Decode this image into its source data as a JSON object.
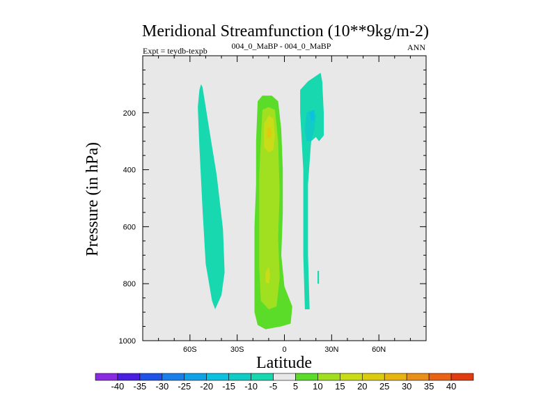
{
  "chart_data": {
    "type": "contour",
    "title": "Meridional Streamfunction (10**9kg/m-2)",
    "subtitle_left": "Expt = teydb-texpb",
    "subtitle_center": "004_0_MaBP - 004_0_MaBP",
    "subtitle_right": "ANN",
    "xlabel": "Latitude",
    "ylabel": "Pressure (in hPa)",
    "xlim": [
      -90,
      90
    ],
    "ylim": [
      1000,
      0
    ],
    "xticks": [
      -60,
      -30,
      0,
      30,
      60
    ],
    "xtick_labels": [
      "60S",
      "30S",
      "0",
      "30N",
      "60N"
    ],
    "yticks": [
      200,
      400,
      600,
      800,
      1000
    ],
    "ytick_labels": [
      "200",
      "400",
      "600",
      "800",
      "1000"
    ],
    "contour_levels": [
      -40,
      -35,
      -30,
      -25,
      -20,
      -15,
      -10,
      -5,
      5,
      10,
      15,
      20,
      25,
      30,
      35,
      40
    ],
    "colorbar_labels": [
      "-40",
      "-35",
      "-30",
      "-25",
      "-20",
      "-15",
      "-10",
      "-5",
      "5",
      "10",
      "15",
      "20",
      "25",
      "30",
      "35",
      "40"
    ],
    "colorbar_colors": [
      "#8a2be2",
      "#4a1ee0",
      "#1f52e6",
      "#1a7fe8",
      "#10a2e6",
      "#0cc0e0",
      "#10ccc4",
      "#18d8b0",
      "#e8e8e8",
      "#5adc28",
      "#a0e020",
      "#c8dc18",
      "#dccc10",
      "#e8b410",
      "#e89018",
      "#e86414",
      "#e03c10"
    ],
    "background_color": "#e8e8e8",
    "regions": [
      {
        "name": "southern-negative-cell",
        "level": -5,
        "color": "#18d8b0",
        "points": [
          [
            -54,
            120
          ],
          [
            -53,
            100
          ],
          [
            -52,
            110
          ],
          [
            -48,
            250
          ],
          [
            -43,
            420
          ],
          [
            -39,
            610
          ],
          [
            -38,
            760
          ],
          [
            -40,
            840
          ],
          [
            -44,
            890
          ],
          [
            -46,
            860
          ],
          [
            -50,
            730
          ],
          [
            -52,
            540
          ],
          [
            -54,
            320
          ],
          [
            -55,
            180
          ]
        ]
      },
      {
        "name": "tropical-positive-cell",
        "level": 5,
        "color": "#5adc28",
        "points": [
          [
            -18,
            300
          ],
          [
            -17,
            160
          ],
          [
            -14,
            140
          ],
          [
            -8,
            140
          ],
          [
            -4,
            160
          ],
          [
            -2,
            260
          ],
          [
            -1,
            400
          ],
          [
            -1,
            550
          ],
          [
            -2,
            700
          ],
          [
            0,
            810
          ],
          [
            5,
            880
          ],
          [
            4,
            940
          ],
          [
            -2,
            950
          ],
          [
            -12,
            960
          ],
          [
            -17,
            945
          ],
          [
            -19,
            900
          ],
          [
            -19,
            800
          ],
          [
            -19,
            600
          ],
          [
            -18,
            450
          ]
        ]
      },
      {
        "name": "tropical-10-core",
        "level": 10,
        "color": "#a0e020",
        "points": [
          [
            -15,
            300
          ],
          [
            -14,
            190
          ],
          [
            -10,
            180
          ],
          [
            -6,
            190
          ],
          [
            -4,
            300
          ],
          [
            -3,
            480
          ],
          [
            -4,
            640
          ],
          [
            -3,
            780
          ],
          [
            -5,
            880
          ],
          [
            -10,
            890
          ],
          [
            -15,
            860
          ],
          [
            -16,
            740
          ],
          [
            -16,
            560
          ],
          [
            -16,
            420
          ]
        ]
      },
      {
        "name": "tropical-15-upper",
        "level": 15,
        "color": "#c8dc18",
        "points": [
          [
            -13,
            240
          ],
          [
            -10,
            210
          ],
          [
            -7,
            220
          ],
          [
            -6,
            280
          ],
          [
            -7,
            330
          ],
          [
            -10,
            340
          ],
          [
            -13,
            320
          ]
        ]
      },
      {
        "name": "tropical-20-upper",
        "level": 20,
        "color": "#dccc10",
        "points": [
          [
            -11,
            255
          ],
          [
            -9,
            250
          ],
          [
            -8,
            270
          ],
          [
            -9,
            290
          ],
          [
            -11,
            285
          ]
        ]
      },
      {
        "name": "tropical-15-lower",
        "level": 15,
        "color": "#c8dc18",
        "points": [
          [
            -12,
            760
          ],
          [
            -10,
            740
          ],
          [
            -9,
            770
          ],
          [
            -10,
            800
          ],
          [
            -12,
            795
          ]
        ]
      },
      {
        "name": "northern-negative-cell",
        "level": -5,
        "color": "#18d8b0",
        "points": [
          [
            10,
            120
          ],
          [
            15,
            90
          ],
          [
            23,
            60
          ],
          [
            24,
            90
          ],
          [
            25,
            200
          ],
          [
            25,
            280
          ],
          [
            22,
            300
          ],
          [
            20,
            285
          ],
          [
            17,
            300
          ],
          [
            15,
            450
          ],
          [
            15,
            700
          ],
          [
            16,
            890
          ],
          [
            13,
            890
          ],
          [
            12,
            700
          ],
          [
            12,
            400
          ],
          [
            10,
            200
          ]
        ]
      },
      {
        "name": "northern-10-core",
        "level": -10,
        "color": "#10ccc4",
        "points": [
          [
            13,
            260
          ],
          [
            14,
            200
          ],
          [
            18,
            190
          ],
          [
            20,
            210
          ],
          [
            19,
            260
          ],
          [
            17,
            300
          ],
          [
            14,
            300
          ]
        ]
      },
      {
        "name": "northern-15-core",
        "level": -15,
        "color": "#0cc0e0",
        "points": [
          [
            16,
            200
          ],
          [
            19,
            190
          ],
          [
            19,
            225
          ],
          [
            17,
            230
          ]
        ]
      },
      {
        "name": "small-negative-patch",
        "level": -5,
        "color": "#18d8b0",
        "points": [
          [
            21,
            755
          ],
          [
            22,
            755
          ],
          [
            22,
            800
          ],
          [
            21,
            800
          ]
        ]
      }
    ]
  }
}
